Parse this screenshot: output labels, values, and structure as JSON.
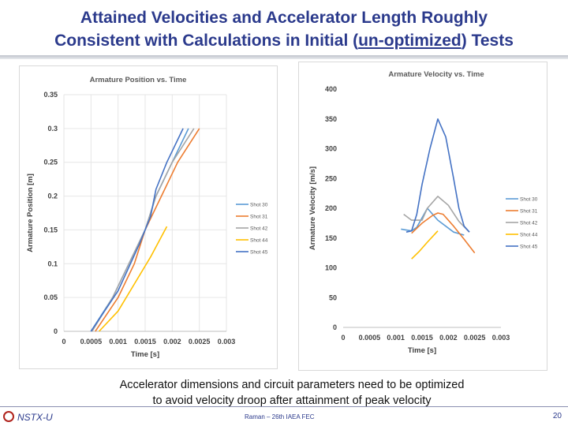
{
  "slide": {
    "title_line1": "Attained Velocities and Accelerator Length Roughly",
    "title_line2_pre": "Consistent with Calculations in Initial (",
    "title_line2_u": "un-optimized",
    "title_line2_post": ") Tests",
    "caption_line1": "Accelerator dimensions and circuit parameters need to be optimized",
    "caption_line2": "to avoid velocity droop after attainment of peak velocity",
    "footer_left": "NSTX-U",
    "footer_center": "Raman – 26th IAEA FEC",
    "page_number": "20",
    "title_color": "#2b3a8c"
  },
  "chart_data": [
    {
      "type": "line",
      "title": "Armature Position vs. Time",
      "xlabel": "Time [s]",
      "ylabel": "Armature Position [m]",
      "xlim": [
        0,
        0.003
      ],
      "ylim": [
        0,
        0.35
      ],
      "x_ticks": [
        "0",
        "0.0005",
        "0.001",
        "0.0015",
        "0.002",
        "0.0025",
        "0.003"
      ],
      "y_ticks": [
        "0",
        "0.05",
        "0.1",
        "0.15",
        "0.2",
        "0.25",
        "0.3",
        "0.35"
      ],
      "grid": true,
      "legend_position": "right",
      "series": [
        {
          "name": "Shot 30",
          "color": "#5b9bd5",
          "points": [
            [
              0.0005,
              0
            ],
            [
              0.0009,
              0.05
            ],
            [
              0.0012,
              0.1
            ],
            [
              0.0015,
              0.15
            ],
            [
              0.0017,
              0.2
            ],
            [
              0.002,
              0.25
            ],
            [
              0.0023,
              0.3
            ]
          ]
        },
        {
          "name": "Shot 31",
          "color": "#ed7d31",
          "points": [
            [
              0.00058,
              0
            ],
            [
              0.001,
              0.05
            ],
            [
              0.0013,
              0.1
            ],
            [
              0.0015,
              0.15
            ],
            [
              0.0018,
              0.2
            ],
            [
              0.0021,
              0.25
            ],
            [
              0.0025,
              0.3
            ]
          ]
        },
        {
          "name": "Shot 42",
          "color": "#a5a5a5",
          "points": [
            [
              0.00052,
              0
            ],
            [
              0.0009,
              0.05
            ],
            [
              0.0012,
              0.1
            ],
            [
              0.0015,
              0.15
            ],
            [
              0.0017,
              0.2
            ],
            [
              0.002,
              0.25
            ],
            [
              0.0024,
              0.3
            ]
          ]
        },
        {
          "name": "Shot 44",
          "color": "#ffc000",
          "points": [
            [
              0.00065,
              0
            ],
            [
              0.001,
              0.03
            ],
            [
              0.0013,
              0.07
            ],
            [
              0.0016,
              0.11
            ],
            [
              0.0018,
              0.14
            ],
            [
              0.0019,
              0.155
            ]
          ]
        },
        {
          "name": "Shot 45",
          "color": "#4472c4",
          "points": [
            [
              0.0005,
              0
            ],
            [
              0.001,
              0.06
            ],
            [
              0.0014,
              0.13
            ],
            [
              0.0016,
              0.17
            ],
            [
              0.0017,
              0.21
            ],
            [
              0.0019,
              0.25
            ],
            [
              0.0022,
              0.3
            ]
          ]
        }
      ]
    },
    {
      "type": "line",
      "title": "Armature Velocity vs. Time",
      "xlabel": "Time [s]",
      "ylabel": "Armature Velocity [m/s]",
      "xlim": [
        0,
        0.003
      ],
      "ylim": [
        0,
        400
      ],
      "x_ticks": [
        "0",
        "0.0005",
        "0.001",
        "0.0015",
        "0.002",
        "0.0025",
        "0.003"
      ],
      "y_ticks": [
        "0",
        "50",
        "100",
        "150",
        "200",
        "250",
        "300",
        "350",
        "400"
      ],
      "grid": false,
      "legend_position": "right",
      "series": [
        {
          "name": "Shot 30",
          "color": "#5b9bd5",
          "points": [
            [
              0.0011,
              165
            ],
            [
              0.0013,
              162
            ],
            [
              0.0014,
              168
            ],
            [
              0.0016,
              200
            ],
            [
              0.0018,
              180
            ],
            [
              0.0021,
              160
            ],
            [
              0.0023,
              155
            ]
          ]
        },
        {
          "name": "Shot 31",
          "color": "#ed7d31",
          "points": [
            [
              0.0013,
              158
            ],
            [
              0.0015,
              175
            ],
            [
              0.0017,
              188
            ],
            [
              0.0018,
              192
            ],
            [
              0.0019,
              190
            ],
            [
              0.0021,
              170
            ],
            [
              0.0023,
              148
            ],
            [
              0.0025,
              125
            ]
          ]
        },
        {
          "name": "Shot 42",
          "color": "#a5a5a5",
          "points": [
            [
              0.00115,
              190
            ],
            [
              0.0013,
              180
            ],
            [
              0.0015,
              180
            ],
            [
              0.0016,
              200
            ],
            [
              0.0018,
              220
            ],
            [
              0.002,
              205
            ],
            [
              0.0022,
              178
            ],
            [
              0.0024,
              160
            ]
          ]
        },
        {
          "name": "Shot 44",
          "color": "#ffc000",
          "points": [
            [
              0.0013,
              115
            ],
            [
              0.00145,
              128
            ],
            [
              0.0016,
              143
            ],
            [
              0.0018,
              162
            ]
          ]
        },
        {
          "name": "Shot 45",
          "color": "#4472c4",
          "points": [
            [
              0.0012,
              160
            ],
            [
              0.0013,
              162
            ],
            [
              0.0014,
              190
            ],
            [
              0.0015,
              240
            ],
            [
              0.00165,
              300
            ],
            [
              0.0018,
              350
            ],
            [
              0.00195,
              320
            ],
            [
              0.0021,
              250
            ],
            [
              0.0022,
              200
            ],
            [
              0.0023,
              170
            ],
            [
              0.0024,
              160
            ]
          ]
        }
      ]
    }
  ]
}
